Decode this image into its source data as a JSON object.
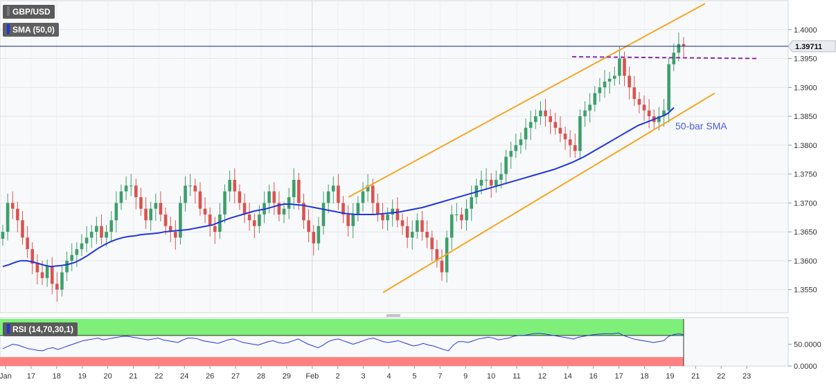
{
  "chart_data": {
    "type": "candlestick",
    "symbol": "GBP/USD",
    "indicator_label": "SMA (50,0)",
    "rsi_label": "RSI (14,70,30,1)",
    "sma_annotation": "50-bar SMA",
    "last_price": "1.39711",
    "price_axis": {
      "min": 1.351,
      "max": 1.405,
      "ticks": [
        "1.4000",
        "1.3950",
        "1.3900",
        "1.3850",
        "1.3800",
        "1.3750",
        "1.3700",
        "1.3650",
        "1.3600",
        "1.3550"
      ]
    },
    "rsi_axis": {
      "min": 0,
      "max": 100,
      "ticks": [
        "50.0000",
        "0.0000"
      ],
      "overbought": 70,
      "oversold": 30
    },
    "x_labels": [
      {
        "label": "Jan",
        "pos": 0
      },
      {
        "label": "17",
        "pos": 1
      },
      {
        "label": "18",
        "pos": 2
      },
      {
        "label": "19",
        "pos": 3
      },
      {
        "label": "20",
        "pos": 4
      },
      {
        "label": "21",
        "pos": 5
      },
      {
        "label": "22",
        "pos": 6
      },
      {
        "label": "24",
        "pos": 7
      },
      {
        "label": "26",
        "pos": 8
      },
      {
        "label": "27",
        "pos": 9
      },
      {
        "label": "28",
        "pos": 10
      },
      {
        "label": "29",
        "pos": 11
      },
      {
        "label": "Feb",
        "pos": 12
      },
      {
        "label": "2",
        "pos": 13
      },
      {
        "label": "3",
        "pos": 14
      },
      {
        "label": "4",
        "pos": 15
      },
      {
        "label": "5",
        "pos": 16
      },
      {
        "label": "7",
        "pos": 17
      },
      {
        "label": "9",
        "pos": 18
      },
      {
        "label": "10",
        "pos": 19
      },
      {
        "label": "11",
        "pos": 20
      },
      {
        "label": "12",
        "pos": 21
      },
      {
        "label": "14",
        "pos": 22
      },
      {
        "label": "16",
        "pos": 23
      },
      {
        "label": "17",
        "pos": 24
      },
      {
        "label": "18",
        "pos": 25
      },
      {
        "label": "19",
        "pos": 26
      },
      {
        "label": "21",
        "pos": 27
      },
      {
        "label": "22",
        "pos": 28
      },
      {
        "label": "23",
        "pos": 29
      }
    ],
    "close": [
      1.365,
      1.37,
      1.369,
      1.367,
      1.364,
      1.362,
      1.3595,
      1.358,
      1.357,
      1.359,
      1.356,
      1.355,
      1.358,
      1.36,
      1.361,
      1.362,
      1.363,
      1.364,
      1.365,
      1.366,
      1.364,
      1.365,
      1.367,
      1.37,
      1.372,
      1.373,
      1.373,
      1.371,
      1.369,
      1.367,
      1.369,
      1.37,
      1.368,
      1.366,
      1.365,
      1.364,
      1.37,
      1.373,
      1.373,
      1.372,
      1.369,
      1.368,
      1.366,
      1.365,
      1.368,
      1.372,
      1.374,
      1.372,
      1.37,
      1.368,
      1.367,
      1.366,
      1.368,
      1.37,
      1.372,
      1.37,
      1.368,
      1.369,
      1.371,
      1.374,
      1.37,
      1.367,
      1.365,
      1.363,
      1.366,
      1.37,
      1.372,
      1.373,
      1.37,
      1.368,
      1.366,
      1.368,
      1.37,
      1.372,
      1.373,
      1.37,
      1.368,
      1.367,
      1.368,
      1.369,
      1.367,
      1.366,
      1.364,
      1.365,
      1.367,
      1.365,
      1.364,
      1.362,
      1.36,
      1.358,
      1.364,
      1.368,
      1.368,
      1.367,
      1.369,
      1.371,
      1.373,
      1.374,
      1.374,
      1.373,
      1.374,
      1.375,
      1.378,
      1.379,
      1.38,
      1.381,
      1.383,
      1.384,
      1.385,
      1.386,
      1.385,
      1.384,
      1.383,
      1.382,
      1.381,
      1.38,
      1.379,
      1.385,
      1.386,
      1.387,
      1.389,
      1.39,
      1.391,
      1.3915,
      1.392,
      1.395,
      1.392,
      1.39,
      1.388,
      1.387,
      1.386,
      1.385,
      1.384,
      1.385,
      1.386,
      1.394,
      1.396,
      1.3975,
      1.3971
    ],
    "sma": [
      1.359,
      1.3593,
      1.3597,
      1.36,
      1.36,
      1.3598,
      1.3595,
      1.3592,
      1.359,
      1.3591,
      1.3592,
      1.3594,
      1.3597,
      1.3602,
      1.3608,
      1.3615,
      1.3622,
      1.3628,
      1.3633,
      1.3637,
      1.364,
      1.3642,
      1.3643,
      1.3645,
      1.3646,
      1.3647,
      1.3648,
      1.365,
      1.3651,
      1.3652,
      1.3653,
      1.3654,
      1.3656,
      1.3658,
      1.366,
      1.3662,
      1.3666,
      1.367,
      1.3674,
      1.3677,
      1.368,
      1.3683,
      1.3686,
      1.3688,
      1.369,
      1.3693,
      1.3696,
      1.3698,
      1.3698,
      1.3697,
      1.3696,
      1.3694,
      1.3692,
      1.369,
      1.3688,
      1.3686,
      1.3684,
      1.3682,
      1.3681,
      1.368,
      1.368,
      1.368,
      1.368,
      1.3681,
      1.3682,
      1.3683,
      1.3684,
      1.3686,
      1.3688,
      1.369,
      1.3692,
      1.3695,
      1.3698,
      1.3701,
      1.3704,
      1.3707,
      1.371,
      1.3713,
      1.3716,
      1.3719,
      1.3722,
      1.3725,
      1.3728,
      1.3731,
      1.3734,
      1.3737,
      1.374,
      1.3743,
      1.3746,
      1.3749,
      1.3752,
      1.3755,
      1.3758,
      1.3762,
      1.3766,
      1.377,
      1.3775,
      1.378,
      1.3786,
      1.3792,
      1.3798,
      1.3804,
      1.381,
      1.3816,
      1.3822,
      1.3828,
      1.3834,
      1.3838,
      1.3842,
      1.3846,
      1.385,
      1.3855,
      1.3865
    ],
    "rsi": [
      40,
      45,
      50,
      48,
      44,
      40,
      38,
      36,
      35,
      40,
      42,
      38,
      42,
      46,
      50,
      54,
      58,
      60,
      62,
      64,
      60,
      62,
      64,
      66,
      68,
      68,
      66,
      64,
      62,
      60,
      62,
      64,
      60,
      58,
      56,
      54,
      60,
      64,
      64,
      62,
      58,
      56,
      54,
      52,
      56,
      60,
      62,
      58,
      54,
      52,
      50,
      48,
      52,
      56,
      58,
      54,
      52,
      54,
      58,
      62,
      56,
      50,
      46,
      42,
      48,
      56,
      60,
      62,
      58,
      54,
      50,
      54,
      58,
      62,
      64,
      60,
      56,
      54,
      56,
      58,
      54,
      50,
      46,
      48,
      52,
      48,
      46,
      42,
      38,
      35,
      48,
      56,
      56,
      54,
      58,
      62,
      64,
      66,
      64,
      60,
      62,
      64,
      68,
      70,
      70,
      72,
      74,
      75,
      74,
      72,
      70,
      68,
      66,
      64,
      62,
      66,
      68,
      70,
      72,
      73,
      74,
      74,
      74,
      76,
      70,
      66,
      62,
      60,
      58,
      56,
      54,
      56,
      58,
      68,
      72,
      74,
      72
    ]
  }
}
